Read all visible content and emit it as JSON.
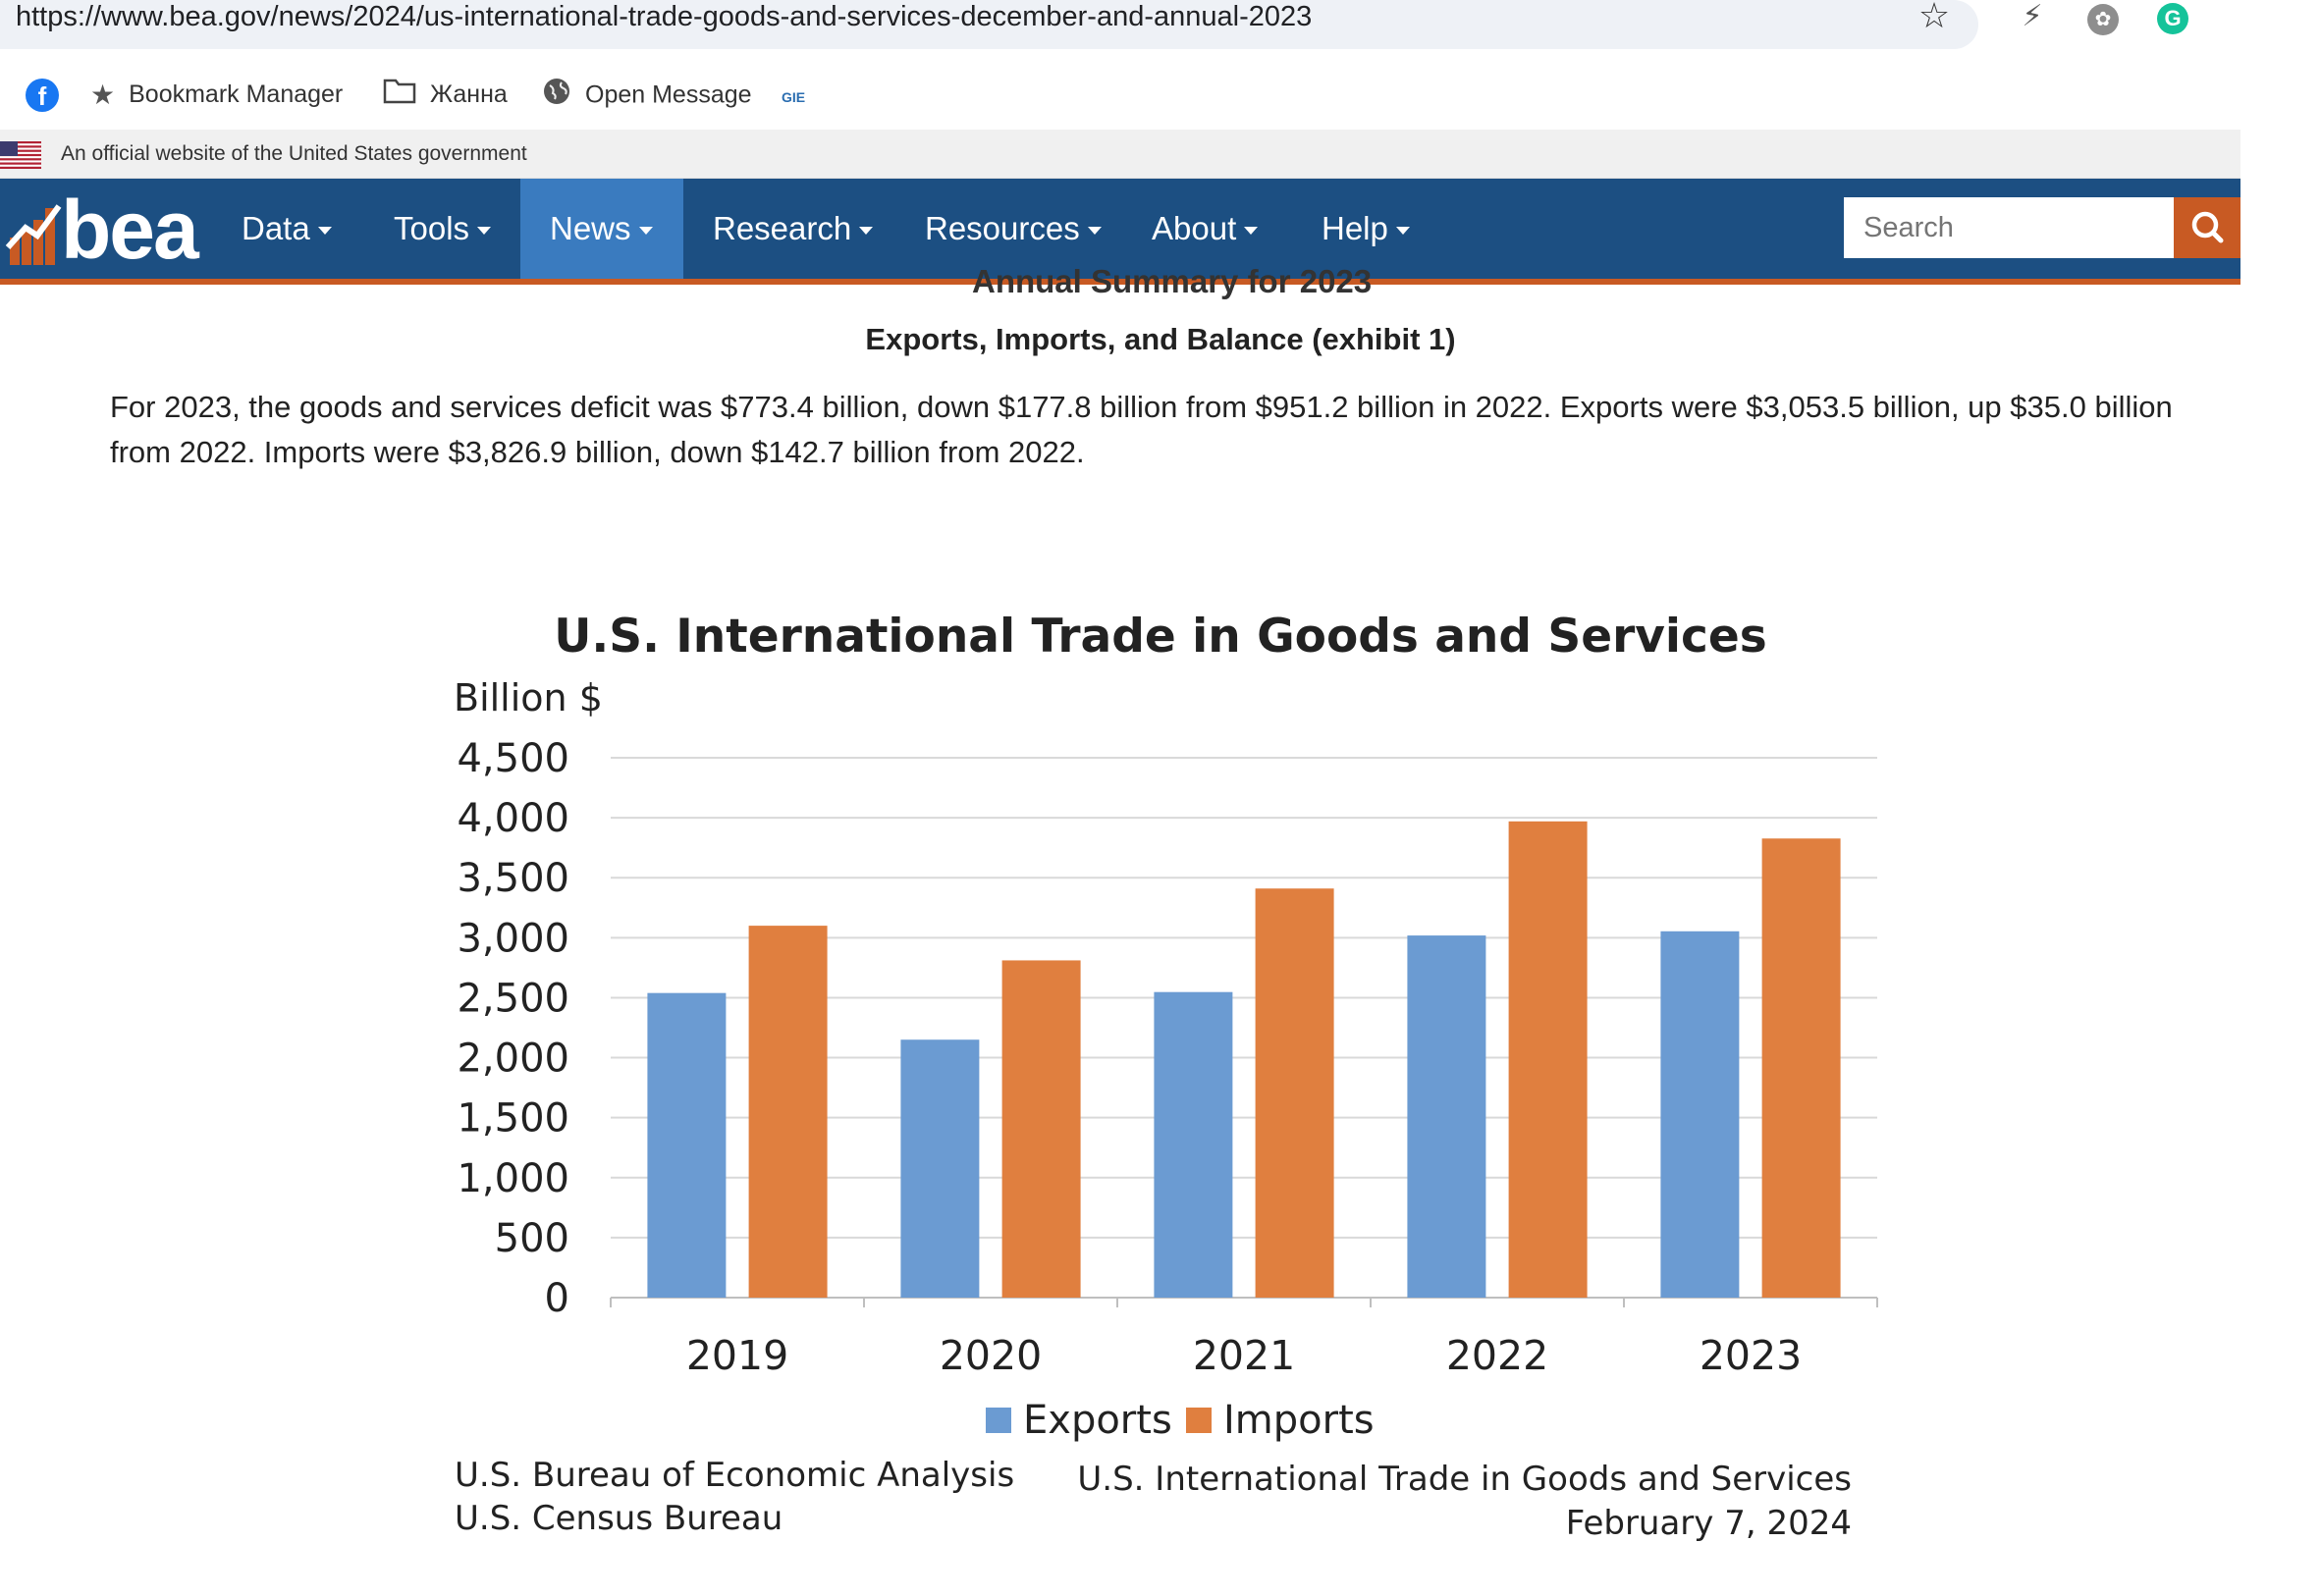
{
  "browser": {
    "url": "https://www.bea.gov/news/2024/us-international-trade-goods-and-services-december-and-annual-2023",
    "bookmarks": [
      {
        "label": "",
        "icon": "facebook-icon"
      },
      {
        "label": "Bookmark Manager",
        "icon": "star-icon"
      },
      {
        "label": "Жанна",
        "icon": "folder-icon"
      },
      {
        "label": "Open Message",
        "icon": "globe-icon"
      },
      {
        "label": "GIE",
        "icon": "gie-icon"
      }
    ]
  },
  "gov_banner": {
    "text": "An official website of the United States government"
  },
  "nav": {
    "logo": "bea",
    "items": [
      {
        "label": "Data",
        "active": false
      },
      {
        "label": "Tools",
        "active": false
      },
      {
        "label": "News",
        "active": true
      },
      {
        "label": "Research",
        "active": false
      },
      {
        "label": "Resources",
        "active": false
      },
      {
        "label": "About",
        "active": false
      },
      {
        "label": "Help",
        "active": false
      }
    ],
    "search_placeholder": "Search"
  },
  "article": {
    "partial_heading": "Annual Summary for 2023",
    "section_heading": "Exports, Imports, and Balance (exhibit 1)",
    "paragraph": "For 2023, the goods and services deficit was $773.4 billion, down $177.8 billion from $951.2 billion in 2022. Exports were $3,053.5 billion, up $35.0 billion from 2022. Imports were $3,826.9 billion, down $142.7 billion from 2022."
  },
  "colors": {
    "nav_bg": "#1c4f82",
    "accent": "#c85a23",
    "exports": "#6b9bd2",
    "imports": "#e07f3f"
  },
  "chart_data": {
    "type": "bar",
    "title": "U.S. International Trade in Goods and Services",
    "ylabel": "Billion $",
    "xlabel": "",
    "categories": [
      "2019",
      "2020",
      "2021",
      "2022",
      "2023"
    ],
    "series": [
      {
        "name": "Exports",
        "values": [
          2539,
          2150,
          2547,
          3018.5,
          3053.5
        ]
      },
      {
        "name": "Imports",
        "values": [
          3100,
          2811,
          3410,
          3969.6,
          3826.9
        ]
      }
    ],
    "ylim": [
      0,
      4500
    ],
    "yticks": [
      "0",
      "500",
      "1,000",
      "1,500",
      "2,000",
      "2,500",
      "3,000",
      "3,500",
      "4,000",
      "4,500"
    ],
    "grid": true,
    "legend": "bottom",
    "source_left": [
      "U.S. Bureau of Economic Analysis",
      "U.S. Census Bureau"
    ],
    "source_right": [
      "U.S. International Trade in Goods and Services",
      "February 7, 2024"
    ]
  }
}
